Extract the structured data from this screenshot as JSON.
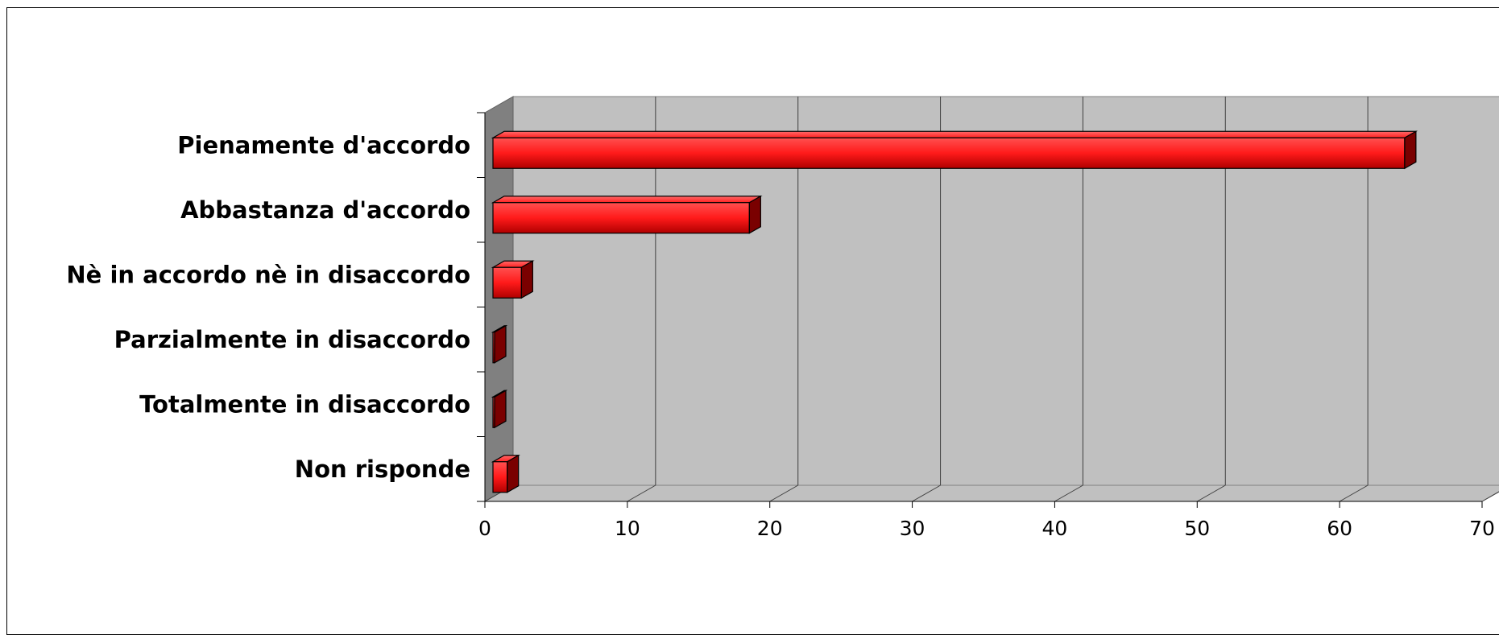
{
  "chart_data": {
    "type": "bar",
    "orientation": "horizontal",
    "style": "3d",
    "categories": [
      "Pienamente d'accordo",
      "Abbastanza d'accordo",
      "Nè in accordo nè in disaccordo",
      "Parzialmente in disaccordo",
      "Totalmente in disaccordo",
      "Non risponde"
    ],
    "values": [
      64,
      18,
      2,
      0,
      0,
      1
    ],
    "xlim": [
      0,
      70
    ],
    "xticks": [
      "0",
      "10",
      "20",
      "30",
      "40",
      "50",
      "60",
      "70"
    ],
    "grid": true,
    "legend": "none",
    "colors": {
      "bar_front": "#ff1a1a",
      "bar_dark": "#b00000",
      "bar_side": "#7a0000",
      "plot_back": "#c0c0c0",
      "plot_left_wall": "#808080",
      "plot_floor": "#c0c0c0"
    }
  }
}
